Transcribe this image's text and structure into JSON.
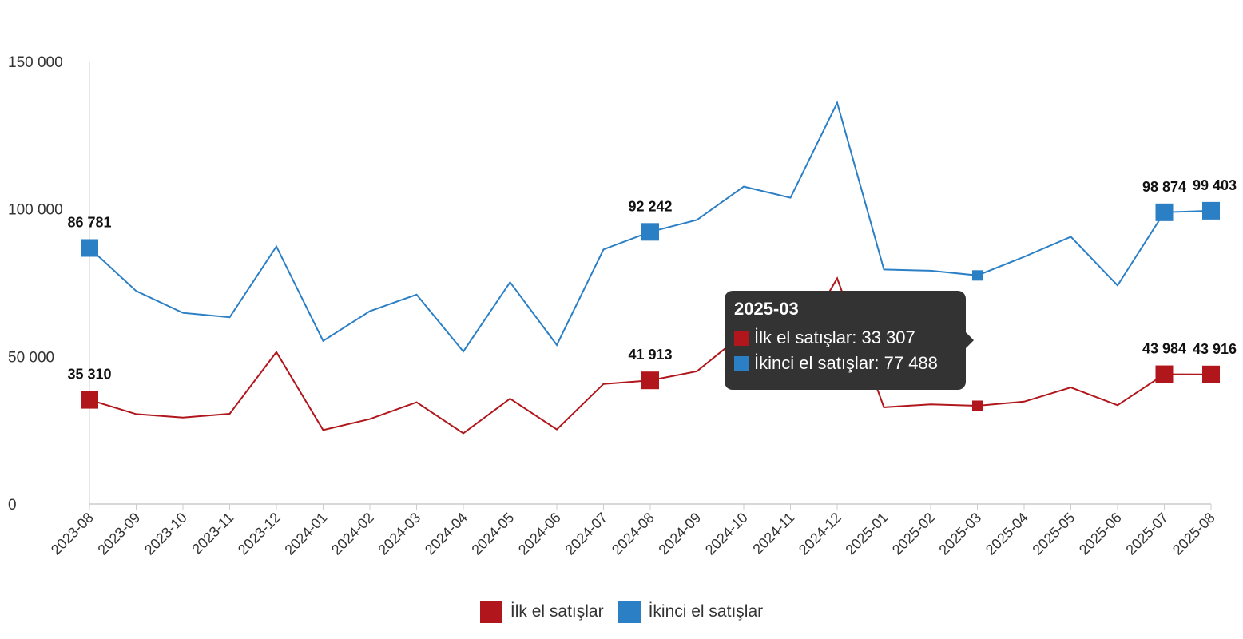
{
  "chart_data": {
    "type": "line",
    "categories": [
      "2023-08",
      "2023-09",
      "2023-10",
      "2023-11",
      "2023-12",
      "2024-01",
      "2024-02",
      "2024-03",
      "2024-04",
      "2024-05",
      "2024-06",
      "2024-07",
      "2024-08",
      "2024-09",
      "2024-10",
      "2024-11",
      "2024-12",
      "2025-01",
      "2025-02",
      "2025-03",
      "2025-04",
      "2025-05",
      "2025-06",
      "2025-07",
      "2025-08"
    ],
    "series": [
      {
        "name": "İlk el satışlar",
        "color": "#b0161b",
        "values": [
          35310,
          30500,
          29300,
          30600,
          51500,
          25100,
          28800,
          34500,
          24000,
          35700,
          25300,
          40700,
          41913,
          45000,
          57800,
          49400,
          76500,
          32800,
          33800,
          33307,
          34700,
          39500,
          33500,
          43984,
          43916
        ]
      },
      {
        "name": "İkinci el satışlar",
        "color": "#2b7fc5",
        "values": [
          86781,
          72200,
          64800,
          63300,
          87300,
          55300,
          65400,
          71000,
          51700,
          75200,
          53900,
          86300,
          92242,
          96300,
          107600,
          103800,
          136000,
          79500,
          79100,
          77488,
          83800,
          90600,
          74100,
          98874,
          99403
        ]
      }
    ],
    "data_labels": [
      {
        "series": 0,
        "index": 0,
        "text": "35 310"
      },
      {
        "series": 0,
        "index": 12,
        "text": "41 913"
      },
      {
        "series": 0,
        "index": 23,
        "text": "43 984"
      },
      {
        "series": 0,
        "index": 24,
        "text": "43 916"
      },
      {
        "series": 1,
        "index": 0,
        "text": "86 781"
      },
      {
        "series": 1,
        "index": 12,
        "text": "92 242"
      },
      {
        "series": 1,
        "index": 23,
        "text": "98 874"
      },
      {
        "series": 1,
        "index": 24,
        "text": "99 403"
      }
    ],
    "big_markers": [
      0,
      12,
      23,
      24
    ],
    "highlight_index": 19,
    "yticks": [
      "0",
      "50 000",
      "100 000",
      "150 000"
    ],
    "ytick_values": [
      0,
      50000,
      100000,
      150000
    ],
    "ylim": [
      0,
      150000
    ],
    "title": "",
    "xlabel": "",
    "ylabel": "",
    "grid": false,
    "legend_position": "bottom-center"
  },
  "legend": [
    {
      "label": "İlk el satışlar",
      "color": "#b0161b"
    },
    {
      "label": "İkinci el satışlar",
      "color": "#2b7fc5"
    }
  ],
  "tooltip": {
    "title": "2025-03",
    "rows": [
      {
        "text": "İlk el satışlar: 33 307",
        "color": "#b0161b"
      },
      {
        "text": "İkinci el satışlar: 77 488",
        "color": "#2b7fc5"
      }
    ]
  }
}
